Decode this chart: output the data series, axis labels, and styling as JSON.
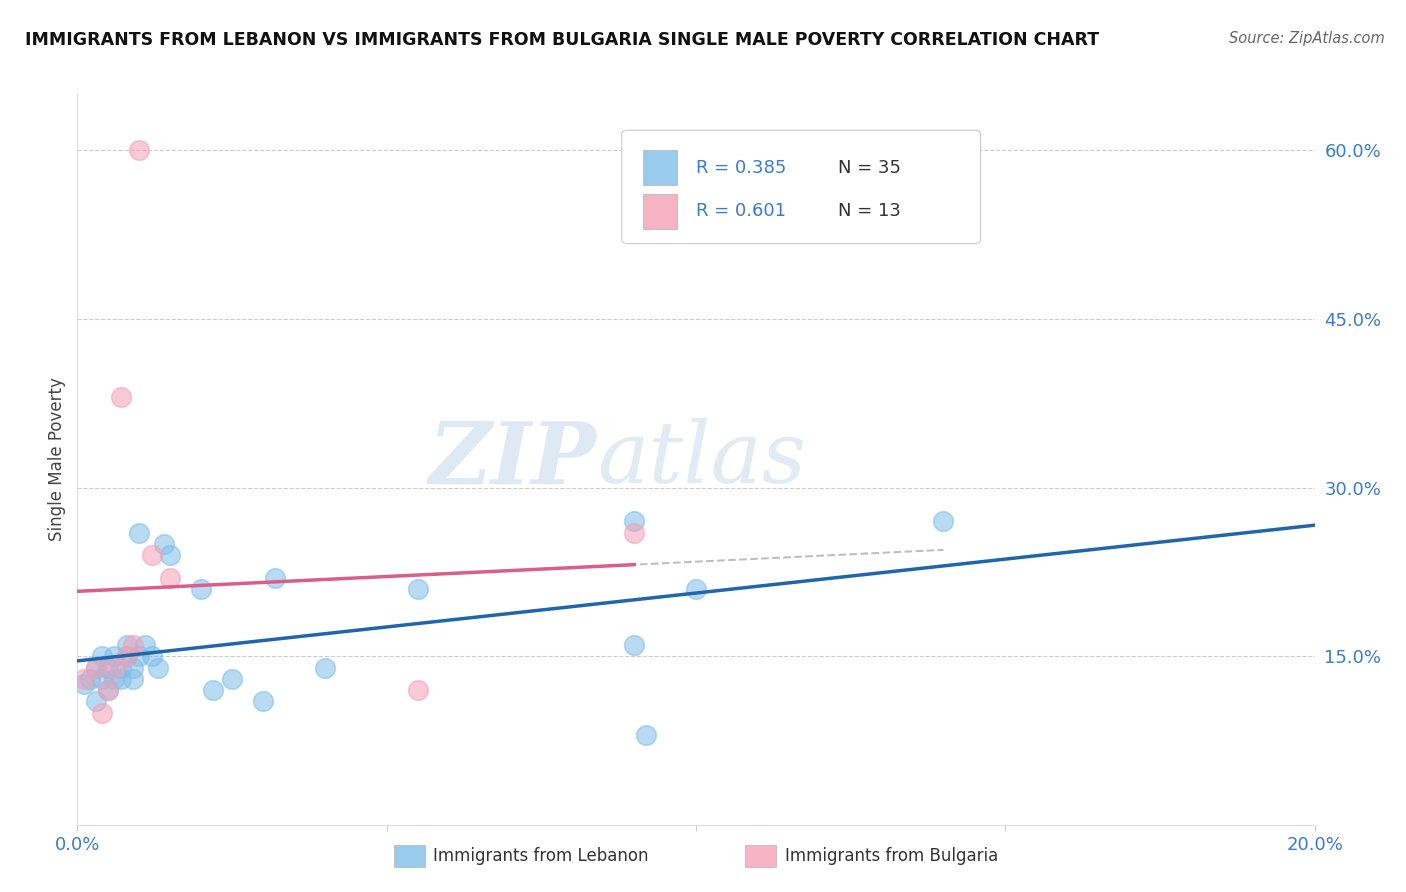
{
  "title": "IMMIGRANTS FROM LEBANON VS IMMIGRANTS FROM BULGARIA SINGLE MALE POVERTY CORRELATION CHART",
  "source": "Source: ZipAtlas.com",
  "ylabel": "Single Male Poverty",
  "xlim": [
    0.0,
    0.2
  ],
  "ylim": [
    0.0,
    0.65
  ],
  "xticks": [
    0.0,
    0.05,
    0.1,
    0.15,
    0.2
  ],
  "xticklabels": [
    "0.0%",
    "",
    "",
    "",
    "20.0%"
  ],
  "yticks_right": [
    0.15,
    0.3,
    0.45,
    0.6
  ],
  "yticklabels_right": [
    "15.0%",
    "30.0%",
    "45.0%",
    "60.0%"
  ],
  "grid_color": "#cccccc",
  "background_color": "#ffffff",
  "lebanon_color": "#7fbee8",
  "bulgaria_color": "#f4a0b5",
  "lebanon_line_color": "#2166ac",
  "bulgaria_line_color": "#d95f88",
  "legend_r1": "R = 0.385",
  "legend_n1": "N = 35",
  "legend_r2": "R = 0.601",
  "legend_n2": "N = 13",
  "watermark_zip": "ZIP",
  "watermark_atlas": "atlas",
  "lebanon_x": [
    0.001,
    0.002,
    0.003,
    0.003,
    0.004,
    0.004,
    0.005,
    0.005,
    0.006,
    0.006,
    0.007,
    0.007,
    0.008,
    0.008,
    0.009,
    0.009,
    0.01,
    0.01,
    0.011,
    0.012,
    0.013,
    0.014,
    0.015,
    0.02,
    0.022,
    0.025,
    0.03,
    0.032,
    0.04,
    0.055,
    0.09,
    0.092,
    0.1,
    0.14,
    0.09
  ],
  "lebanon_y": [
    0.125,
    0.13,
    0.11,
    0.14,
    0.13,
    0.15,
    0.12,
    0.14,
    0.13,
    0.15,
    0.14,
    0.13,
    0.15,
    0.16,
    0.14,
    0.13,
    0.15,
    0.26,
    0.16,
    0.15,
    0.14,
    0.25,
    0.24,
    0.21,
    0.12,
    0.13,
    0.11,
    0.22,
    0.14,
    0.21,
    0.16,
    0.08,
    0.21,
    0.27,
    0.27
  ],
  "bulgaria_x": [
    0.001,
    0.003,
    0.004,
    0.005,
    0.006,
    0.007,
    0.008,
    0.009,
    0.01,
    0.012,
    0.015,
    0.055,
    0.09
  ],
  "bulgaria_y": [
    0.13,
    0.14,
    0.1,
    0.12,
    0.14,
    0.38,
    0.15,
    0.16,
    0.6,
    0.24,
    0.22,
    0.12,
    0.26
  ],
  "bottom_label1": "Immigrants from Lebanon",
  "bottom_label2": "Immigrants from Bulgaria"
}
